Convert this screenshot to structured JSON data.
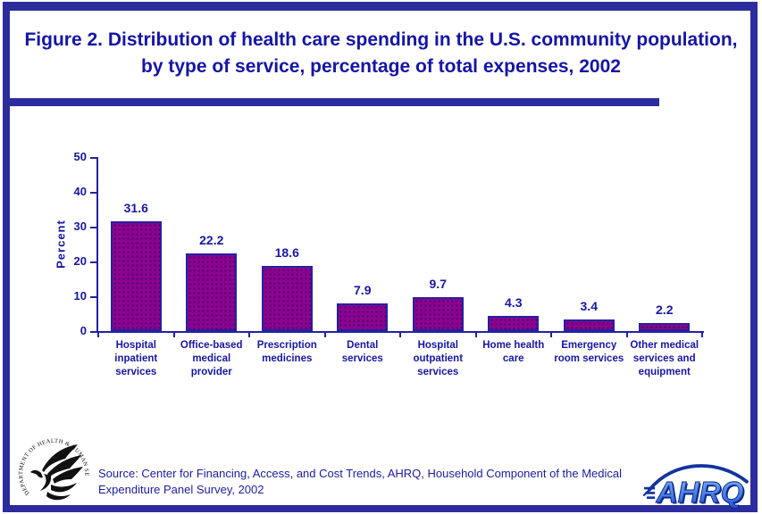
{
  "title": "Figure 2. Distribution of health care spending in the U.S. community population, by type of service, percentage of total expenses, 2002",
  "chart_data": {
    "type": "bar",
    "title": "Figure 2. Distribution of health care spending in the U.S. community population, by type of service, percentage of total expenses, 2002",
    "categories": [
      "Hospital inpatient services",
      "Office-based medical provider",
      "Prescription medicines",
      "Dental services",
      "Hospital outpatient services",
      "Home health care",
      "Emergency room services",
      "Other medical services and equipment"
    ],
    "values": [
      31.6,
      22.2,
      18.6,
      7.9,
      9.7,
      4.3,
      3.4,
      2.2
    ],
    "xlabel": "",
    "ylabel": "Percent",
    "ylim": [
      0,
      50
    ],
    "yticks": [
      0,
      10,
      20,
      30,
      40,
      50
    ],
    "grid": false,
    "legend": false,
    "bar_color": "#8b0390",
    "bar_border_color": "#2222a0",
    "axis_color": "#2222a0",
    "label_color": "#1717a0"
  },
  "footer": {
    "source": "Source: Center for Financing, Access, and Cost Trends, AHRQ, Household Component of the Medical Expenditure Panel Survey, 2002"
  },
  "logos": {
    "hhs_ring_text": "DEPARTMENT OF HEALTH & HUMAN SERVICES · USA",
    "ahrq_text": "AHRQ"
  },
  "colors": {
    "frame_navy": "#2c2c9e",
    "title_text": "#1515a4",
    "bar_purple": "#8b0390",
    "ahrq_blue": "#2f6fd0"
  }
}
